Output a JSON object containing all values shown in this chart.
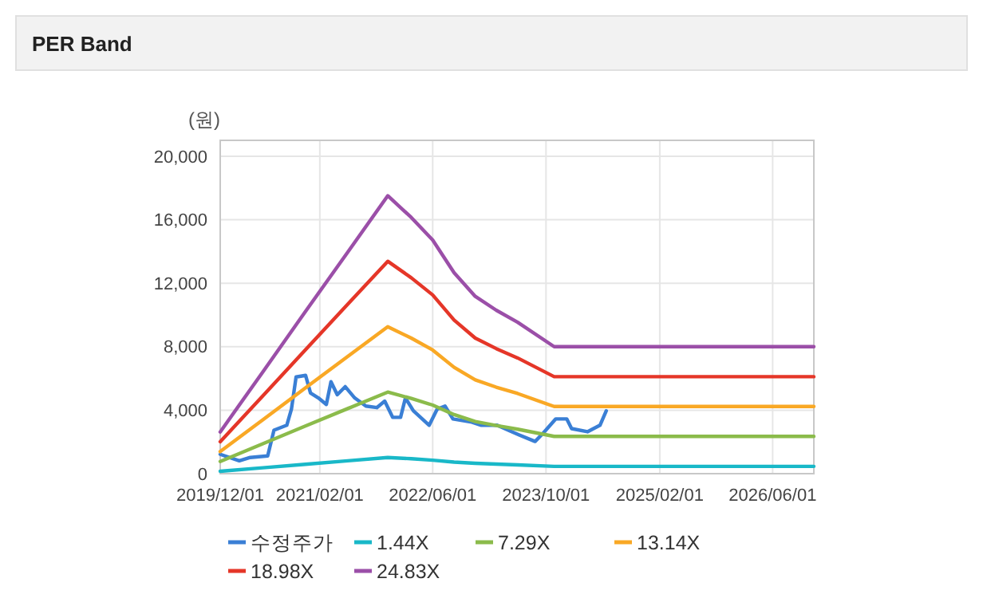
{
  "chart_data": {
    "type": "line",
    "title": "PER Band",
    "ylabel": "(원)",
    "xlim": [
      "2019-12-01",
      "2026-11-25"
    ],
    "xticks": [
      {
        "value": "2019-12-01",
        "label": "2019/12/01"
      },
      {
        "value": "2021-02-01",
        "label": "2021/02/01"
      },
      {
        "value": "2022-06-01",
        "label": "2022/06/01"
      },
      {
        "value": "2023-10-01",
        "label": "2023/10/01"
      },
      {
        "value": "2025-02-01",
        "label": "2025/02/01"
      },
      {
        "value": "2026-06-01",
        "label": "2026/06/01"
      }
    ],
    "ylim": [
      0,
      21000
    ],
    "yticks": [
      {
        "value": 0,
        "label": "0"
      },
      {
        "value": 4000,
        "label": "4,000"
      },
      {
        "value": 8000,
        "label": "8,000"
      },
      {
        "value": 12000,
        "label": "12,000"
      },
      {
        "value": 16000,
        "label": "16,000"
      },
      {
        "value": 20000,
        "label": "20,000"
      }
    ],
    "grid": true,
    "legend": "bottom",
    "marker": "none",
    "line_style": "solid",
    "series": [
      {
        "name": "수정주가",
        "color": "#3a7fd5",
        "x": [
          "2019-12-01",
          "2020-02-21",
          "2020-04-08",
          "2020-06-22",
          "2020-07-19",
          "2020-09-12",
          "2020-10-02",
          "2020-10-22",
          "2020-12-02",
          "2020-12-23",
          "2021-01-26",
          "2021-03-01",
          "2021-03-21",
          "2021-04-17",
          "2021-05-21",
          "2021-07-01",
          "2021-08-18",
          "2021-10-04",
          "2021-11-07",
          "2021-12-11",
          "2022-01-14",
          "2022-02-04",
          "2022-03-10",
          "2022-05-17",
          "2022-06-20",
          "2022-07-24",
          "2022-08-27",
          "2022-11-16",
          "2022-12-27",
          "2023-03-05",
          "2023-04-22",
          "2023-06-08",
          "2023-08-15",
          "2023-09-18",
          "2023-11-12",
          "2023-12-29",
          "2024-01-19",
          "2024-03-27",
          "2024-05-20",
          "2024-06-16"
        ],
        "values": [
          1220,
          810,
          1020,
          1120,
          2740,
          3050,
          4060,
          6090,
          6190,
          5080,
          4770,
          4360,
          5790,
          4970,
          5480,
          4770,
          4260,
          4160,
          4570,
          3550,
          3550,
          4770,
          3960,
          3050,
          4060,
          4260,
          3450,
          3250,
          3050,
          3050,
          2740,
          2440,
          2030,
          2540,
          3450,
          3450,
          2840,
          2640,
          3050,
          3960
        ]
      },
      {
        "name": "1.44X",
        "color": "#19b8c8",
        "values": [
          150,
          370,
          590,
          810,
          1020,
          940,
          850,
          730,
          650,
          600,
          550,
          460,
          460
        ]
      },
      {
        "name": "7.29X",
        "color": "#8bbb4b",
        "values": [
          770,
          1880,
          3000,
          4100,
          5140,
          4740,
          4320,
          3720,
          3280,
          3030,
          2800,
          2350,
          2350
        ]
      },
      {
        "name": "13.14X",
        "color": "#f9a825",
        "values": [
          1390,
          3390,
          5400,
          7390,
          9260,
          8540,
          7790,
          6700,
          5910,
          5450,
          5050,
          4230,
          4230
        ]
      },
      {
        "name": "18.98X",
        "color": "#e53628",
        "values": [
          2010,
          4900,
          7800,
          10670,
          13380,
          12340,
          11260,
          9680,
          8540,
          7880,
          7290,
          6110,
          6110
        ]
      },
      {
        "name": "24.83X",
        "color": "#9b4fa8",
        "values": [
          2630,
          6410,
          10210,
          13950,
          17510,
          16140,
          14720,
          12660,
          11170,
          10300,
          9540,
          8000,
          8000
        ]
      }
    ],
    "x": [
      "2019-12-01",
      "2020-06-01",
      "2020-12-01",
      "2021-06-01",
      "2021-11-20",
      "2022-03-01",
      "2022-06-01",
      "2022-09-01",
      "2022-12-01",
      "2023-03-01",
      "2023-06-01",
      "2023-11-05",
      "2026-11-25"
    ]
  }
}
